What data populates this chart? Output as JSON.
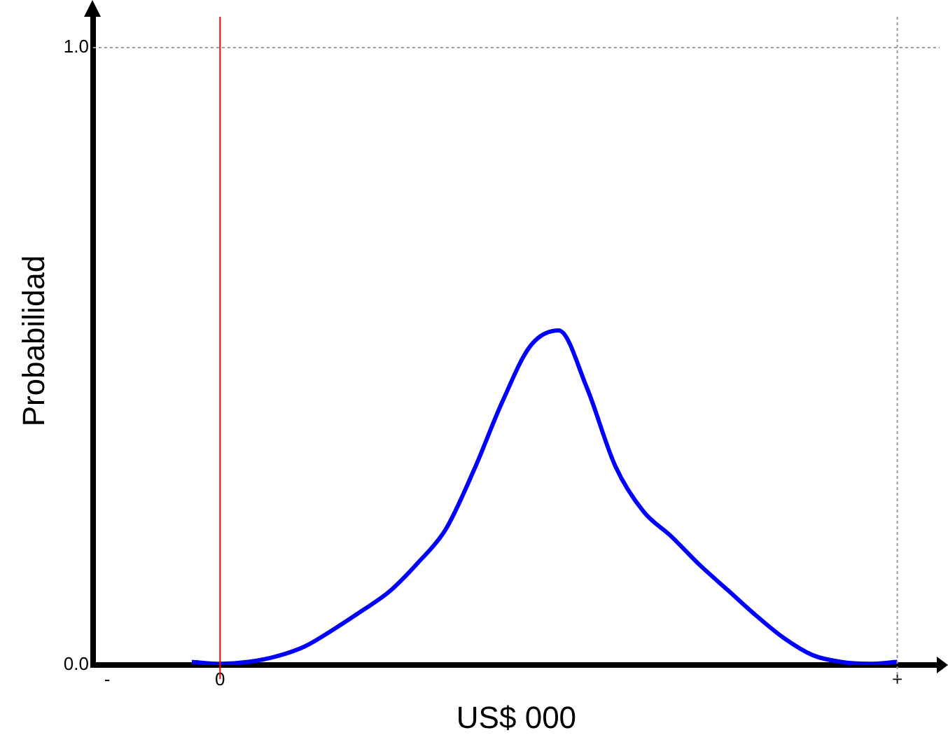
{
  "chart_data": {
    "type": "line",
    "xlabel": "US$ 000",
    "ylabel": "Probabilidad",
    "categories": [
      "-",
      null,
      null,
      null,
      "0",
      null,
      null,
      null,
      null,
      null,
      null,
      null,
      null,
      null,
      null,
      null,
      null,
      null,
      null,
      null,
      null,
      null,
      null,
      null,
      null,
      null,
      null,
      null,
      "+",
      null
    ],
    "series": [
      {
        "color": "#0000ff",
        "values": [
          null,
          null,
          null,
          0.005,
          0.002,
          0.005,
          0.014,
          0.03,
          0.057,
          0.087,
          0.119,
          0.165,
          0.22,
          0.316,
          0.426,
          0.517,
          0.542,
          0.449,
          0.323,
          0.249,
          0.208,
          0.162,
          0.121,
          0.08,
          0.043,
          0.016,
          0.005,
          0.002,
          0.005,
          null
        ]
      }
    ],
    "ylim": [
      0,
      1.05
    ],
    "yticks": [
      {
        "value": 0,
        "label": "0.0"
      },
      {
        "value": 1,
        "label": "1.0"
      }
    ],
    "ref_lines": [
      {
        "axis": "x",
        "value": "0",
        "color": "#ff0000",
        "line_style": "solid"
      },
      {
        "axis": "y",
        "value": 1,
        "color": "#999999",
        "line_style": "dotted"
      },
      {
        "axis": "x",
        "value": "+",
        "color": "#999999",
        "line_style": "dotted"
      }
    ],
    "grid": false,
    "legend": false,
    "marker": "none",
    "line_style": "solid"
  }
}
